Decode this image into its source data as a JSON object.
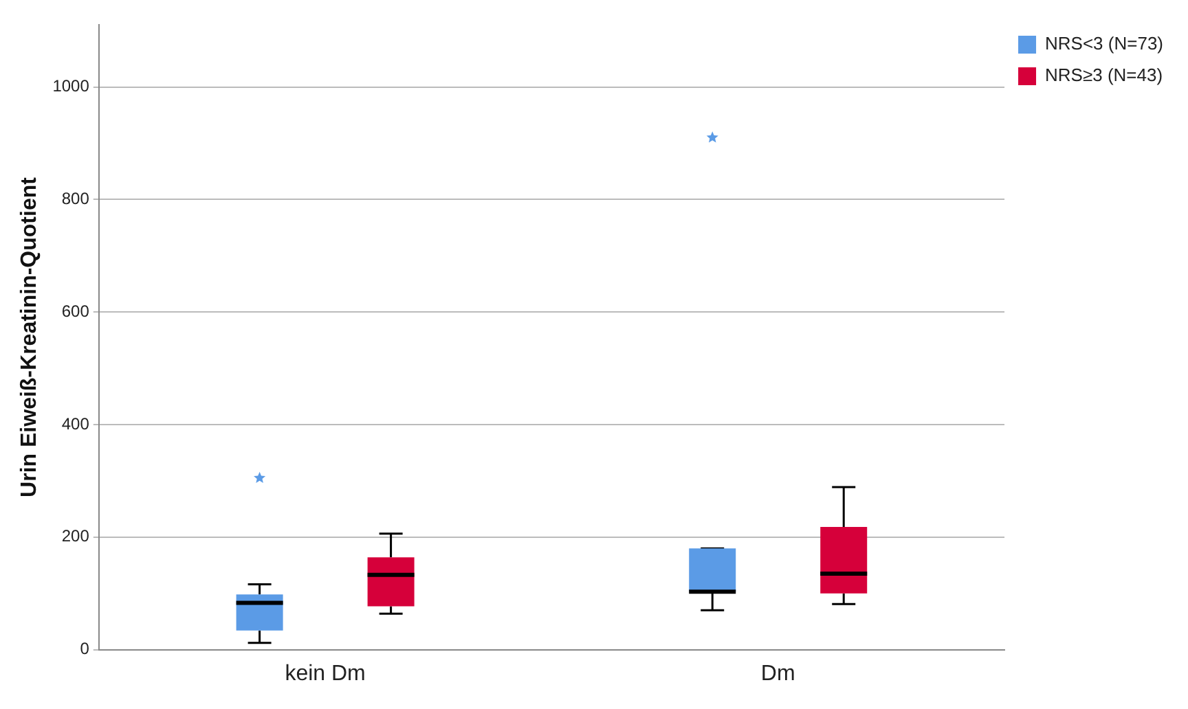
{
  "chart_data": {
    "type": "box",
    "ylabel": "Urin Eiweiß-Kreatinin-Quotient",
    "categories": [
      "kein Dm",
      "Dm"
    ],
    "series": [
      {
        "name": "NRS<3 (N=73)",
        "color": "#5b9be6",
        "boxes": [
          {
            "low": 12,
            "q1": 34,
            "median": 83,
            "q3": 98,
            "high": 116,
            "outliers": [
              305
            ]
          },
          {
            "low": 70,
            "q1": 103,
            "median": 103,
            "q3": 180,
            "high": 180,
            "outliers": [
              910
            ]
          }
        ]
      },
      {
        "name": "NRS≥3 (N=43)",
        "color": "#d6003a",
        "boxes": [
          {
            "low": 64,
            "q1": 77,
            "median": 133,
            "q3": 164,
            "high": 206
          },
          {
            "low": 81,
            "q1": 100,
            "median": 135,
            "q3": 218,
            "high": 289
          }
        ]
      }
    ],
    "ylim": [
      0,
      1110
    ],
    "yticks": [
      0,
      200,
      400,
      600,
      800,
      1000
    ],
    "grid": "y",
    "legend": "top right",
    "marker": "star"
  }
}
